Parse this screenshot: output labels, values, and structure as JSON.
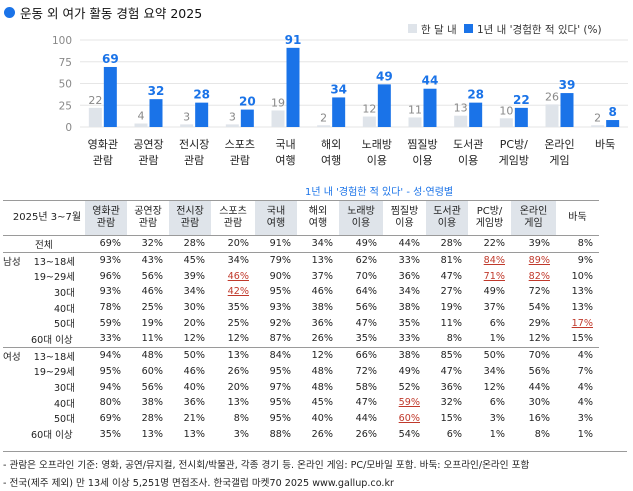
{
  "title": "운동 외 여가 활동 경험 요약 2025",
  "colors": {
    "accent": "#1a73e8",
    "light_bar": "#dfe4ea",
    "highlight": "#c0392b"
  },
  "chart_data": {
    "type": "bar",
    "title": "운동 외 여가 활동 경험 요약 2025",
    "categories": [
      "영화관\n관람",
      "공연장\n관람",
      "전시장\n관람",
      "스포츠\n관람",
      "국내\n여행",
      "해외\n여행",
      "노래방\n이용",
      "찜질방\n이용",
      "도서관\n이용",
      "PC방/\n게임방",
      "온라인\n게임",
      "바둑"
    ],
    "series": [
      {
        "name": "한 달 내",
        "values": [
          22,
          4,
          3,
          3,
          19,
          2,
          12,
          11,
          13,
          10,
          26,
          2
        ]
      },
      {
        "name": "1년 내 '경험한 적 있다' (%)",
        "values": [
          69,
          32,
          28,
          20,
          91,
          34,
          49,
          44,
          28,
          22,
          39,
          8
        ]
      }
    ],
    "ylim": [
      0,
      100
    ],
    "yticks": [
      0,
      25,
      50,
      75,
      100
    ],
    "legend": "top-right",
    "xlabel": "",
    "ylabel": ""
  },
  "table": {
    "group_header": "1년 내 '경험한 적 있다' - 성·연령별",
    "period": "2025년 3~7월",
    "columns": [
      "영화관\n관람",
      "공연장\n관람",
      "전시장\n관람",
      "스포츠\n관람",
      "국내\n여행",
      "해외\n여행",
      "노래방\n이용",
      "찜질방\n이용",
      "도서관\n이용",
      "PC방/\n게임방",
      "온라인\n게임",
      "바둑"
    ],
    "rows": [
      {
        "group": "",
        "label": "전체",
        "values": [
          "69%",
          "32%",
          "28%",
          "20%",
          "91%",
          "34%",
          "49%",
          "44%",
          "28%",
          "22%",
          "39%",
          "8%"
        ],
        "hl": []
      },
      {
        "group": "남성",
        "label": "13~18세",
        "values": [
          "93%",
          "43%",
          "45%",
          "34%",
          "79%",
          "13%",
          "62%",
          "33%",
          "81%",
          "84%",
          "89%",
          "9%"
        ],
        "hl": [
          9,
          10
        ]
      },
      {
        "group": "",
        "label": "19~29세",
        "values": [
          "96%",
          "56%",
          "39%",
          "46%",
          "90%",
          "37%",
          "70%",
          "36%",
          "47%",
          "71%",
          "82%",
          "10%"
        ],
        "hl": [
          3,
          9,
          10
        ]
      },
      {
        "group": "",
        "label": "30대",
        "values": [
          "93%",
          "46%",
          "34%",
          "42%",
          "95%",
          "46%",
          "64%",
          "34%",
          "27%",
          "49%",
          "72%",
          "13%"
        ],
        "hl": [
          3
        ]
      },
      {
        "group": "",
        "label": "40대",
        "values": [
          "78%",
          "25%",
          "30%",
          "35%",
          "93%",
          "38%",
          "56%",
          "38%",
          "19%",
          "37%",
          "54%",
          "13%"
        ],
        "hl": []
      },
      {
        "group": "",
        "label": "50대",
        "values": [
          "59%",
          "19%",
          "20%",
          "25%",
          "92%",
          "36%",
          "47%",
          "35%",
          "11%",
          "6%",
          "29%",
          "17%"
        ],
        "hl": [
          11
        ]
      },
      {
        "group": "",
        "label": "60대 이상",
        "values": [
          "33%",
          "11%",
          "12%",
          "12%",
          "87%",
          "26%",
          "35%",
          "33%",
          "8%",
          "1%",
          "12%",
          "15%"
        ],
        "hl": []
      },
      {
        "group": "여성",
        "label": "13~18세",
        "values": [
          "94%",
          "48%",
          "50%",
          "13%",
          "84%",
          "12%",
          "66%",
          "38%",
          "85%",
          "50%",
          "70%",
          "4%"
        ],
        "hl": []
      },
      {
        "group": "",
        "label": "19~29세",
        "values": [
          "95%",
          "60%",
          "46%",
          "26%",
          "95%",
          "48%",
          "72%",
          "49%",
          "47%",
          "34%",
          "56%",
          "7%"
        ],
        "hl": []
      },
      {
        "group": "",
        "label": "30대",
        "values": [
          "94%",
          "56%",
          "40%",
          "20%",
          "97%",
          "48%",
          "58%",
          "52%",
          "36%",
          "12%",
          "44%",
          "4%"
        ],
        "hl": []
      },
      {
        "group": "",
        "label": "40대",
        "values": [
          "80%",
          "38%",
          "36%",
          "13%",
          "95%",
          "45%",
          "47%",
          "59%",
          "32%",
          "6%",
          "30%",
          "4%"
        ],
        "hl": [
          7
        ]
      },
      {
        "group": "",
        "label": "50대",
        "values": [
          "69%",
          "28%",
          "21%",
          "8%",
          "95%",
          "40%",
          "44%",
          "60%",
          "15%",
          "3%",
          "16%",
          "3%"
        ],
        "hl": [
          7
        ]
      },
      {
        "group": "",
        "label": "60대 이상",
        "values": [
          "35%",
          "13%",
          "13%",
          "3%",
          "88%",
          "26%",
          "26%",
          "54%",
          "6%",
          "1%",
          "8%",
          "1%"
        ],
        "hl": []
      }
    ]
  },
  "footnotes": [
    "- 관람은 오프라인 기준: 영화, 공연/뮤지컬, 전시회/박물관, 각종 경기 등. 온라인 게임: PC/모바일 포함. 바둑: 오프라인/온라인 포함",
    "- 전국(제주 제외) 만 13세 이상 5,251명 면접조사. 한국갤럽 마켓70 2025 www.gallup.co.kr"
  ]
}
